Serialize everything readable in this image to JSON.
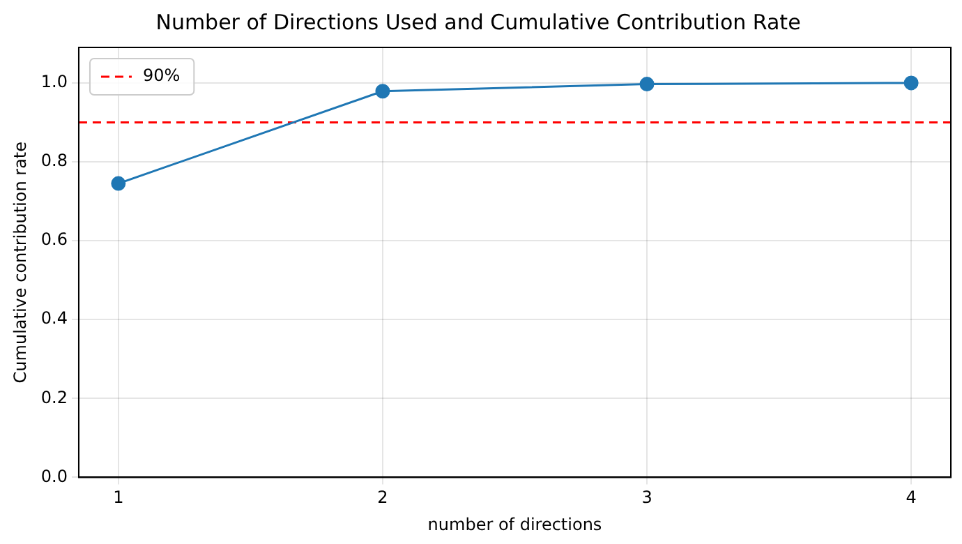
{
  "chart_data": {
    "type": "line",
    "title": "Number of Directions Used and Cumulative Contribution Rate",
    "xlabel": "number of directions",
    "ylabel": "Cumulative contribution rate",
    "x": [
      1,
      2,
      3,
      4
    ],
    "series": [
      {
        "color": "#1f77b4",
        "values": [
          0.745,
          0.979,
          0.997,
          1.0
        ]
      }
    ],
    "marker": "circle",
    "line_style": "solid",
    "xlim": [
      0.85,
      4.15
    ],
    "xticks": [
      1,
      2,
      3,
      4
    ],
    "ylim": [
      0,
      1.09
    ],
    "yticks": [
      {
        "value": 0,
        "label": "0.0"
      },
      {
        "value": 0.2,
        "label": "0.2"
      },
      {
        "value": 0.4,
        "label": "0.4"
      },
      {
        "value": 0.6,
        "label": "0.6"
      },
      {
        "value": 0.8,
        "label": "0.8"
      },
      {
        "value": 1.0,
        "label": "1.0"
      }
    ],
    "ref_lines": [
      {
        "axis": "y",
        "value": 0.9,
        "label": "90%",
        "color": "#ff0000",
        "line_style": "dashed"
      }
    ],
    "grid": true,
    "legend": "top left"
  }
}
